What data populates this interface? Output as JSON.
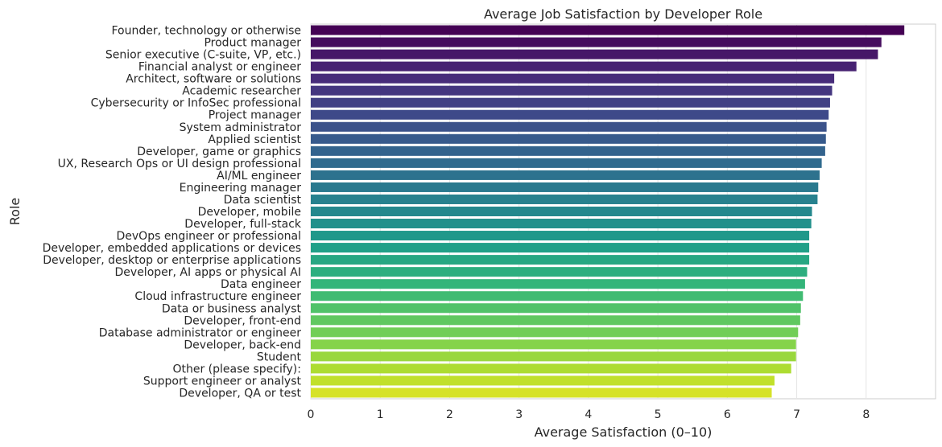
{
  "chart_data": {
    "type": "bar",
    "orientation": "horizontal",
    "title": "Average Job Satisfaction by Developer Role",
    "xlabel": "Average Satisfaction (0–10)",
    "ylabel": "Role",
    "xlim": [
      0,
      9.0
    ],
    "xticks": [
      "0",
      "1",
      "2",
      "3",
      "4",
      "5",
      "6",
      "7",
      "8"
    ],
    "grid": "x",
    "palette": "viridis",
    "categories": [
      "Founder, technology or otherwise",
      "Product manager",
      "Senior executive (C-suite, VP, etc.)",
      "Financial analyst or engineer",
      "Architect, software or solutions",
      "Academic researcher",
      "Cybersecurity or InfoSec professional",
      "Project manager",
      "System administrator",
      "Applied scientist",
      "Developer, game or graphics",
      "UX, Research Ops or UI design professional",
      "AI/ML engineer",
      "Engineering manager",
      "Data scientist",
      "Developer, mobile",
      "Developer, full-stack",
      "DevOps engineer or professional",
      "Developer, embedded applications or devices",
      "Developer, desktop or enterprise applications",
      "Developer, AI apps or physical AI",
      "Data engineer",
      "Cloud infrastructure engineer",
      "Data or business analyst",
      "Developer, front-end",
      "Database administrator or engineer",
      "Developer, back-end",
      "Student",
      "Other (please specify):",
      "Support engineer or analyst",
      "Developer, QA or test"
    ],
    "values": [
      8.55,
      8.22,
      8.17,
      7.86,
      7.54,
      7.51,
      7.48,
      7.46,
      7.43,
      7.42,
      7.41,
      7.36,
      7.33,
      7.31,
      7.3,
      7.22,
      7.21,
      7.18,
      7.18,
      7.18,
      7.15,
      7.12,
      7.09,
      7.06,
      7.05,
      7.02,
      6.99,
      6.99,
      6.92,
      6.68,
      6.64
    ]
  }
}
